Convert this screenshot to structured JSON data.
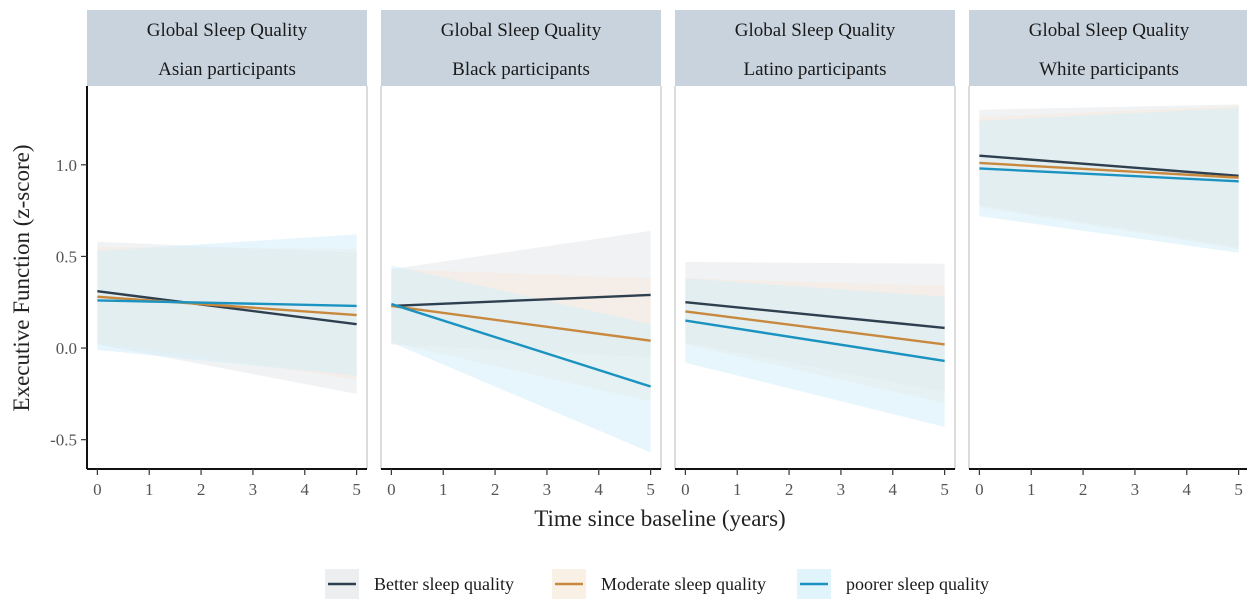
{
  "chart_data": {
    "type": "line",
    "panel_title": "Global Sleep Quality",
    "xlabel": "Time since baseline (years)",
    "ylabel": "Executive Function (z-score)",
    "xlim": [
      -0.2,
      5.2
    ],
    "ylim": [
      -0.66,
      1.43
    ],
    "x_ticks": [
      0,
      1,
      2,
      3,
      4,
      5
    ],
    "y_ticks": [
      {
        "value": 1.0,
        "label": "1.0"
      },
      {
        "value": 0.5,
        "label": "0.5"
      },
      {
        "value": 0.0,
        "label": "0.0"
      },
      {
        "value": -0.5,
        "label": "-0.5"
      }
    ],
    "grid": false,
    "legend_position": "bottom",
    "legend": [
      {
        "name": "Better sleep quality",
        "color": "#2e3f4f",
        "band_color": "#e6e7ea"
      },
      {
        "name": "Moderate sleep quality",
        "color": "#c8893e",
        "band_color": "#f7e9dc"
      },
      {
        "name": "poorer sleep quality",
        "color": "#1b93c0",
        "band_color": "#d4eef9"
      }
    ],
    "panels": [
      {
        "subtitle": "Asian participants",
        "series": [
          {
            "name": "Better sleep quality",
            "x": [
              0,
              5
            ],
            "y": [
              0.31,
              0.13
            ],
            "lower": [
              0.02,
              -0.25
            ],
            "upper": [
              0.58,
              0.52
            ]
          },
          {
            "name": "Moderate sleep quality",
            "x": [
              0,
              5
            ],
            "y": [
              0.28,
              0.18
            ],
            "lower": [
              0.03,
              -0.17
            ],
            "upper": [
              0.55,
              0.54
            ]
          },
          {
            "name": "poorer sleep quality",
            "x": [
              0,
              5
            ],
            "y": [
              0.26,
              0.23
            ],
            "lower": [
              -0.01,
              -0.15
            ],
            "upper": [
              0.53,
              0.62
            ]
          }
        ]
      },
      {
        "subtitle": "Black participants",
        "series": [
          {
            "name": "Better sleep quality",
            "x": [
              0,
              5
            ],
            "y": [
              0.23,
              0.29
            ],
            "lower": [
              0.02,
              -0.05
            ],
            "upper": [
              0.43,
              0.64
            ]
          },
          {
            "name": "Moderate sleep quality",
            "x": [
              0,
              5
            ],
            "y": [
              0.23,
              0.04
            ],
            "lower": [
              0.03,
              -0.29
            ],
            "upper": [
              0.43,
              0.38
            ]
          },
          {
            "name": "poorer sleep quality",
            "x": [
              0,
              5
            ],
            "y": [
              0.24,
              -0.21
            ],
            "lower": [
              0.03,
              -0.57
            ],
            "upper": [
              0.45,
              0.13
            ]
          }
        ]
      },
      {
        "subtitle": "Latino participants",
        "series": [
          {
            "name": "Better sleep quality",
            "x": [
              0,
              5
            ],
            "y": [
              0.25,
              0.11
            ],
            "lower": [
              0.03,
              -0.24
            ],
            "upper": [
              0.47,
              0.46
            ]
          },
          {
            "name": "Moderate sleep quality",
            "x": [
              0,
              5
            ],
            "y": [
              0.2,
              0.02
            ],
            "lower": [
              0.02,
              -0.3
            ],
            "upper": [
              0.38,
              0.34
            ]
          },
          {
            "name": "poorer sleep quality",
            "x": [
              0,
              5
            ],
            "y": [
              0.15,
              -0.07
            ],
            "lower": [
              -0.08,
              -0.43
            ],
            "upper": [
              0.38,
              0.28
            ]
          }
        ]
      },
      {
        "subtitle": "White participants",
        "series": [
          {
            "name": "Better sleep quality",
            "x": [
              0,
              5
            ],
            "y": [
              1.05,
              0.94
            ],
            "lower": [
              0.78,
              0.55
            ],
            "upper": [
              1.3,
              1.33
            ]
          },
          {
            "name": "Moderate sleep quality",
            "x": [
              0,
              5
            ],
            "y": [
              1.01,
              0.93
            ],
            "lower": [
              0.77,
              0.54
            ],
            "upper": [
              1.26,
              1.32
            ]
          },
          {
            "name": "poorer sleep quality",
            "x": [
              0,
              5
            ],
            "y": [
              0.98,
              0.91
            ],
            "lower": [
              0.72,
              0.52
            ],
            "upper": [
              1.24,
              1.31
            ]
          }
        ]
      }
    ]
  }
}
